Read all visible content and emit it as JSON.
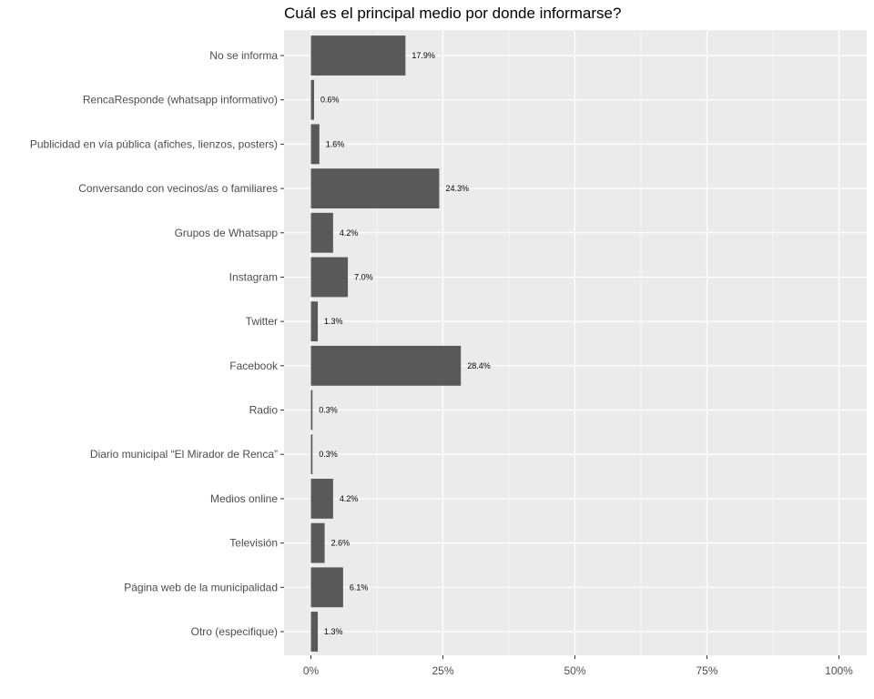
{
  "chart_data": {
    "type": "bar",
    "orientation": "horizontal",
    "title": "Cuál es el principal medio por donde informarse?",
    "xlabel": "",
    "ylabel": "",
    "xlim": [
      0,
      100
    ],
    "x_ticks": [
      "0%",
      "25%",
      "50%",
      "75%",
      "100%"
    ],
    "x_tick_values": [
      0,
      25,
      50,
      75,
      100
    ],
    "grid": true,
    "bar_color": "#595959",
    "panel_color": "#ebebeb",
    "categories": [
      "No se informa",
      "RencaResponde (whatsapp informativo)",
      "Publicidad en vía pública (afiches, lienzos, posters)",
      "Conversando con vecinos/as o familiares",
      "Grupos de Whatsapp",
      "Instagram",
      "Twitter",
      "Facebook",
      "Radio",
      "Diario municipal “El Mirador de Renca”",
      "Medios online",
      "Televisión",
      "Página web de la municipalidad",
      "Otro (especifique)"
    ],
    "values": [
      17.9,
      0.6,
      1.6,
      24.3,
      4.2,
      7.0,
      1.3,
      28.4,
      0.3,
      0.3,
      4.2,
      2.6,
      6.1,
      1.3
    ],
    "data_labels": [
      "17.9%",
      "0.6%",
      "1.6%",
      "24.3%",
      "4.2%",
      "7.0%",
      "1.3%",
      "28.4%",
      "0.3%",
      "0.3%",
      "4.2%",
      "2.6%",
      "6.1%",
      "1.3%"
    ]
  }
}
